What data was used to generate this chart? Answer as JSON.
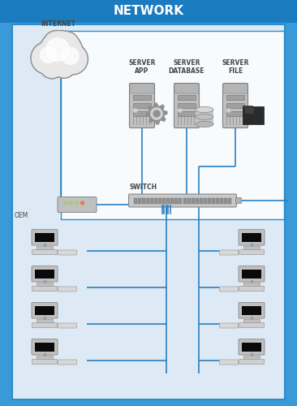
{
  "title": "NETWORK",
  "title_bg": "#1b7bbf",
  "title_color": "white",
  "outer_bg": "#3a9ad9",
  "inner_bg": "#cfe2f0",
  "white_panel_bg": "#f0f6fc",
  "border_color": "#2a8ccc",
  "line_color": "#2b7fbf",
  "text_color": "#444444",
  "gray_text": "#555555",
  "labels": {
    "internet": "INTERNET",
    "server_app": "SERVER\nAPP",
    "server_db": "SERVER\nDATABASE",
    "server_file": "SERVER\nFILE",
    "switch": "SWITCH",
    "router": "OEM"
  },
  "font_size_title": 11,
  "font_size_label": 5.5
}
